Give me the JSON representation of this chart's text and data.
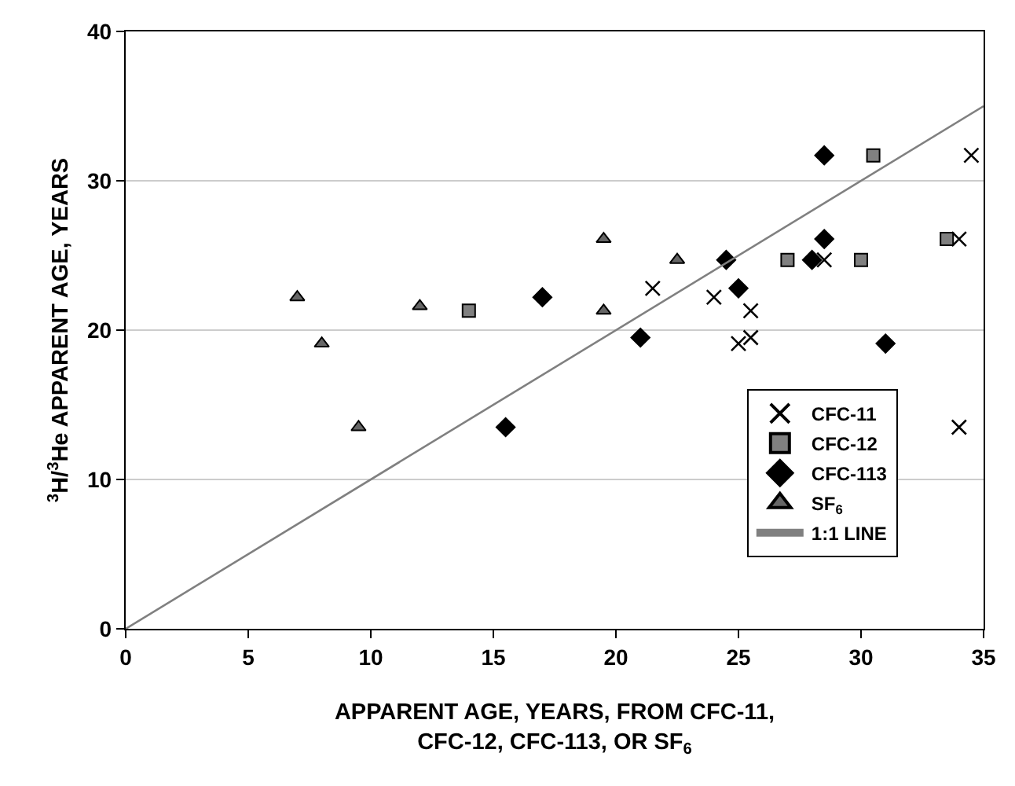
{
  "chart_data": {
    "type": "scatter",
    "xlabel": "APPARENT AGE, YEARS, FROM CFC-11,\nCFC-12, CFC-113, OR SF$_{6}$",
    "ylabel": "$^{3}$H/$^{3}$He APPARENT AGE, YEARS",
    "xlim": [
      0,
      35
    ],
    "xticks": [
      0,
      5,
      10,
      15,
      20,
      25,
      30,
      35
    ],
    "ylim": [
      0,
      40
    ],
    "yticks": [
      0,
      10,
      20,
      30,
      40
    ],
    "grid": "y",
    "legend": "right",
    "series": [
      {
        "name": "CFC-11",
        "color": "#000000",
        "marker": "cross",
        "x": [
          21.5,
          24.0,
          25.0,
          25.5,
          25.5,
          28.5,
          34.0,
          34.5,
          34.0
        ],
        "values": [
          22.8,
          22.2,
          19.1,
          21.3,
          19.5,
          24.7,
          26.1,
          31.7,
          13.5
        ]
      },
      {
        "name": "CFC-12",
        "color": "#808080",
        "marker": "square",
        "x": [
          14.0,
          27.0,
          30.0,
          30.5,
          33.5
        ],
        "values": [
          21.3,
          24.7,
          24.7,
          31.7,
          26.1
        ]
      },
      {
        "name": "CFC-113",
        "color": "#000000",
        "marker": "diamond",
        "x": [
          15.5,
          17.0,
          21.0,
          24.5,
          25.0,
          28.0,
          28.5,
          28.5,
          31.0
        ],
        "values": [
          13.5,
          22.2,
          19.5,
          24.7,
          22.8,
          24.7,
          26.1,
          31.7,
          19.1
        ]
      },
      {
        "name": "SF$_{6}$",
        "color": "#666666",
        "marker": "triangle",
        "x": [
          7.0,
          8.0,
          9.5,
          12.0,
          19.5,
          19.5,
          22.5
        ],
        "values": [
          22.2,
          19.1,
          13.5,
          21.6,
          26.1,
          21.3,
          24.7
        ]
      },
      {
        "name": "1:1 LINE",
        "type": "line",
        "color": "#808080",
        "marker": "none",
        "x": [
          0,
          35
        ],
        "values": [
          0,
          35
        ]
      }
    ]
  }
}
